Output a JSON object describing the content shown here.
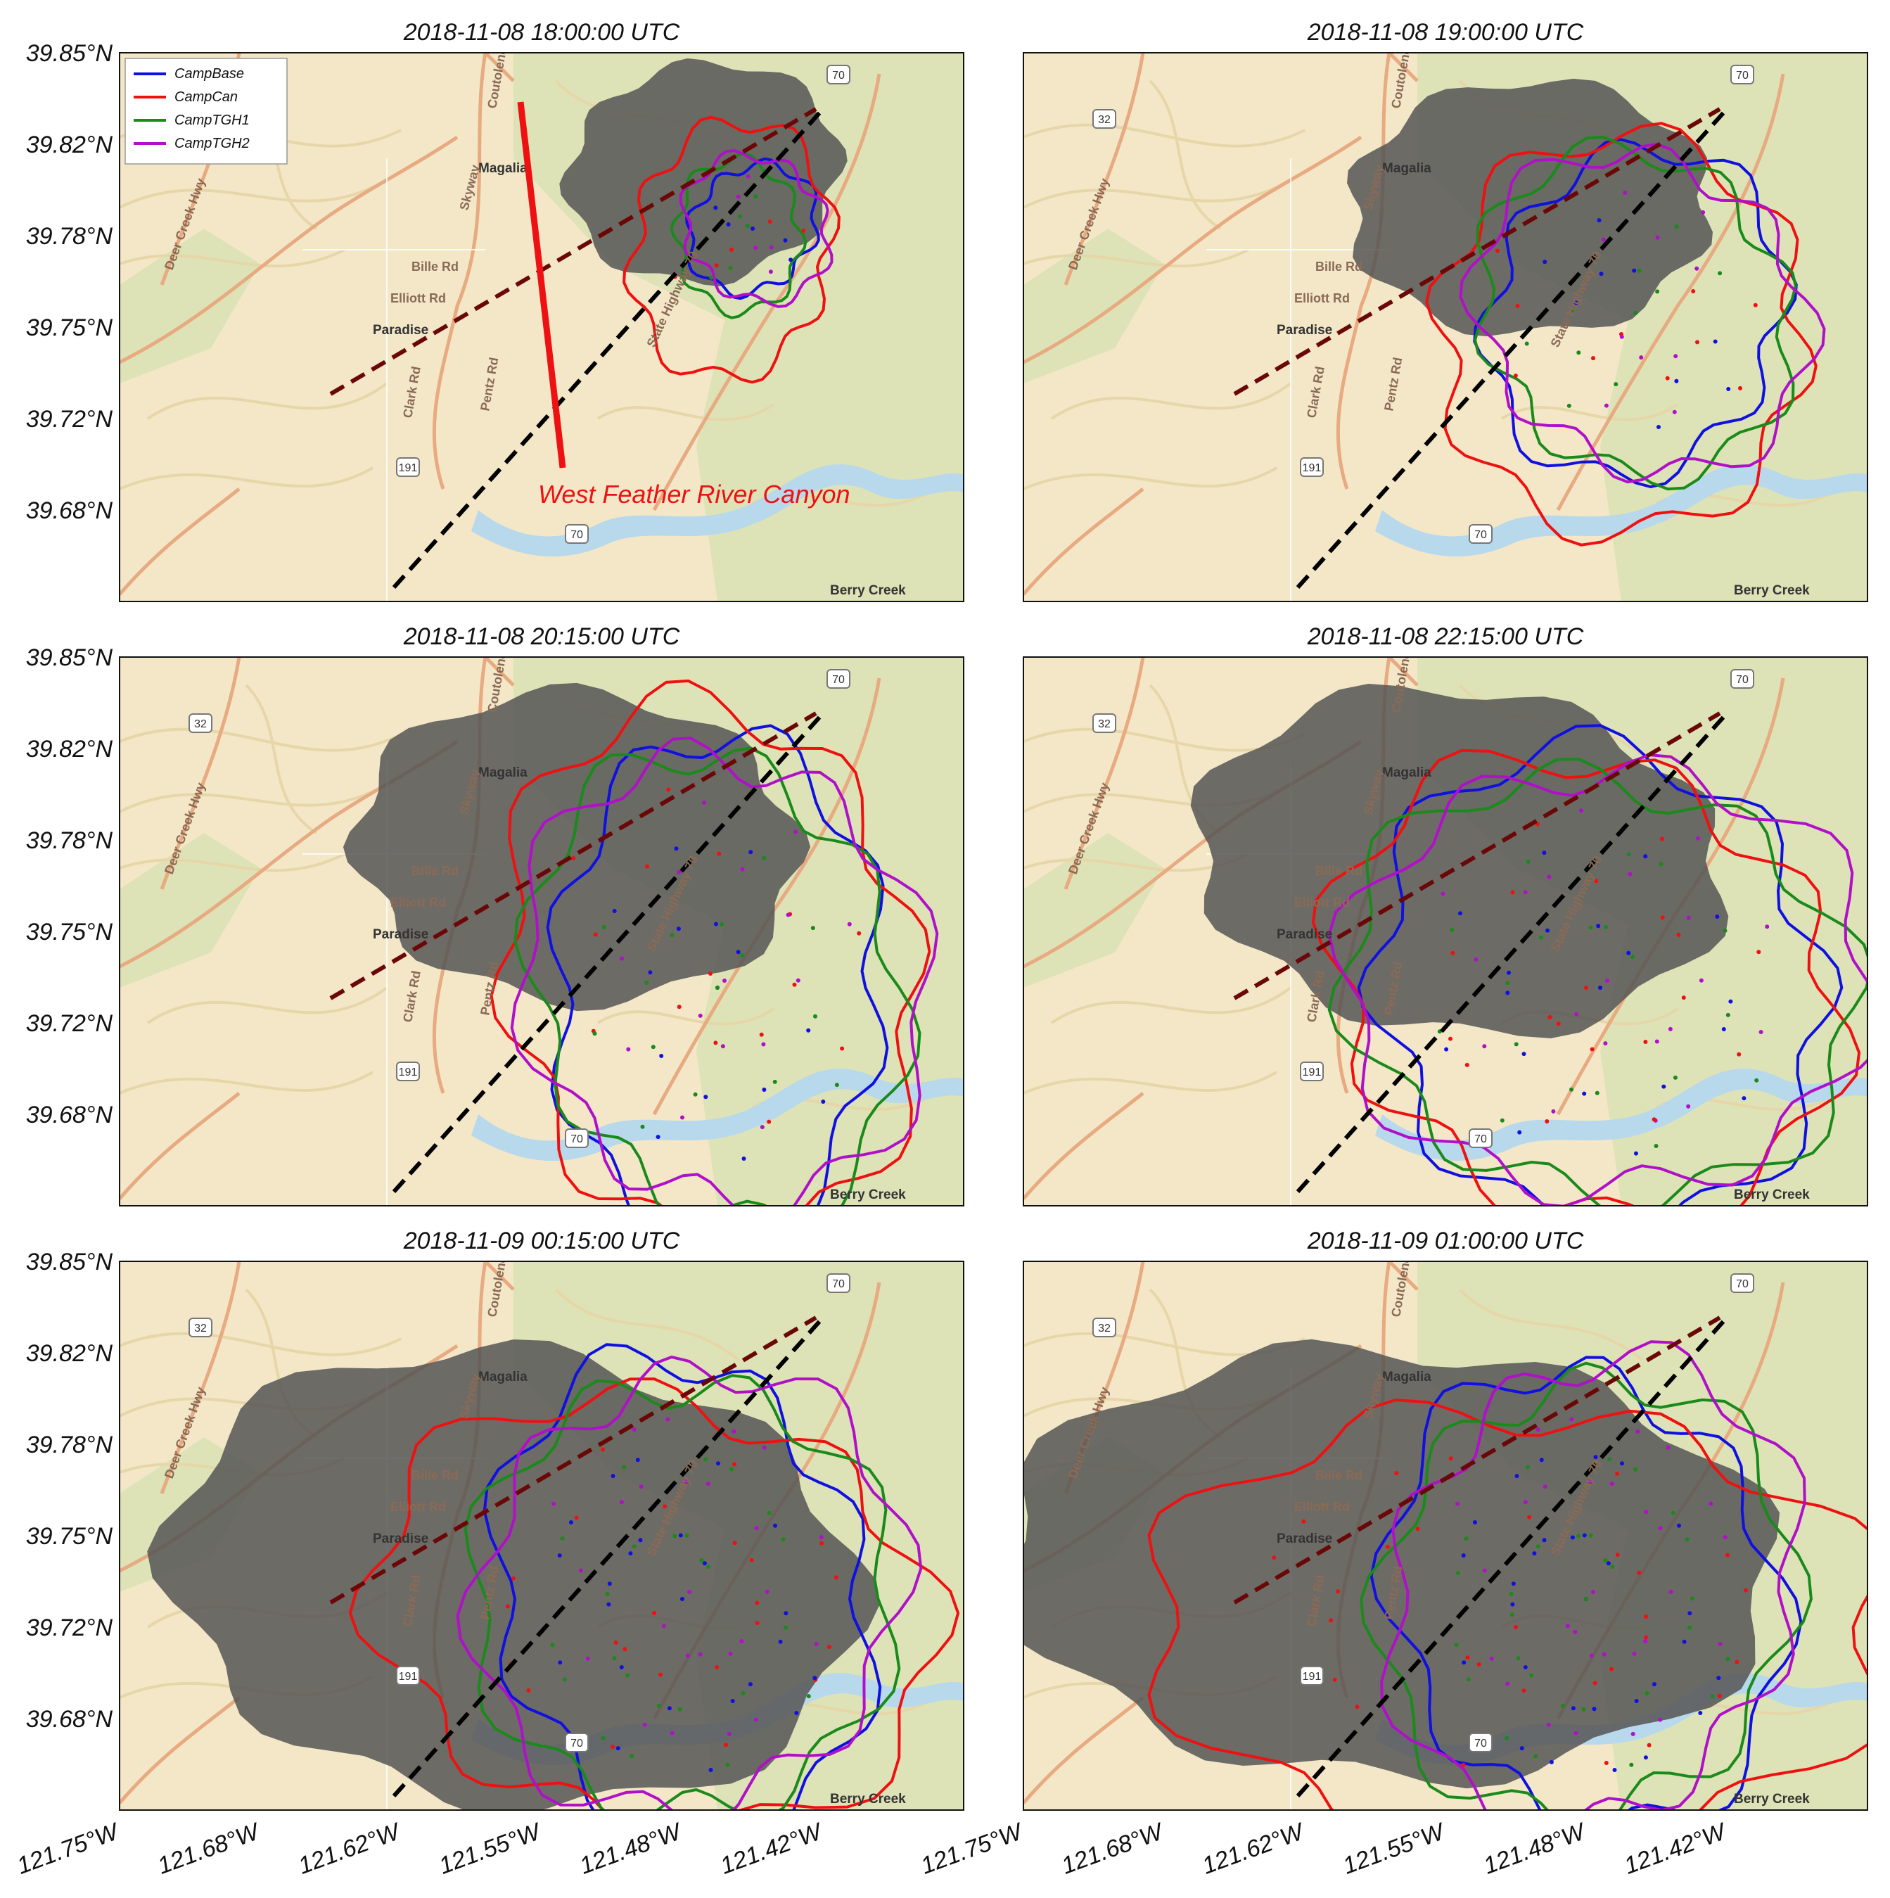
{
  "figure": {
    "panels": [
      {
        "title": "2018-11-08 18:00:00 UTC",
        "stage": 0
      },
      {
        "title": "2018-11-08 19:00:00 UTC",
        "stage": 1
      },
      {
        "title": "2018-11-08 20:15:00 UTC",
        "stage": 2
      },
      {
        "title": "2018-11-08 22:15:00 UTC",
        "stage": 3
      },
      {
        "title": "2018-11-09 00:15:00 UTC",
        "stage": 4
      },
      {
        "title": "2018-11-09 01:00:00 UTC",
        "stage": 5
      }
    ],
    "y_ticks": [
      "39.85°N",
      "39.82°N",
      "39.78°N",
      "39.75°N",
      "39.72°N",
      "39.68°N"
    ],
    "x_ticks": [
      "121.75°W",
      "121.68°W",
      "121.62°W",
      "121.55°W",
      "121.48°W",
      "121.42°W"
    ],
    "legend": [
      "CampBase",
      "CampCan",
      "CampTGH1",
      "CampTGH2"
    ],
    "annotation": "West Feather River Canyon",
    "places": {
      "magalia": "Magalia",
      "paradise": "Paradise",
      "berry_creek": "Berry Creek",
      "bille_rd": "Bille Rd",
      "elliott_rd": "Elliott Rd",
      "clark_rd": "Clark Rd",
      "pentz_rd": "Pentz Rd",
      "skyway": "Skyway",
      "coutolenc": "Coutolenc",
      "deer_creek_hwy": "Deer Creek Hwy",
      "state_highway_70": "State Highway 70"
    },
    "shields": {
      "hwy70": "70",
      "hwy32": "32",
      "hwy191": "191"
    }
  },
  "colors": {
    "CampBase": "#1010e0",
    "CampCan": "#ee1111",
    "CampTGH1": "#1a8a1a",
    "CampTGH2": "#b010c8",
    "observed": "#555555",
    "dashed_dark_red": "#6a0808",
    "dashed_black": "#000000",
    "terrain": "#f2e6c6",
    "forest": "#dbe2b4",
    "river": "#b8d8ec",
    "road": "#e8aa80"
  }
}
